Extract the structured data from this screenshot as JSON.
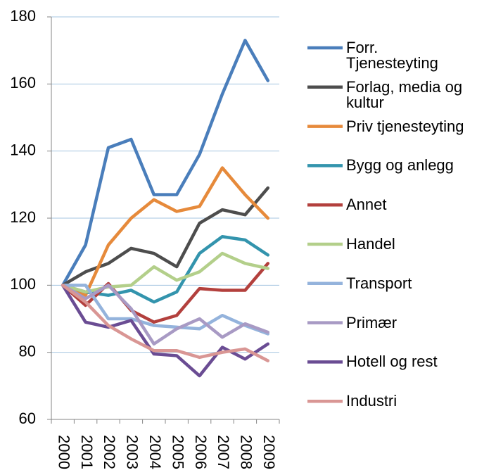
{
  "chart_data": {
    "type": "line",
    "categories": [
      "2000",
      "2001",
      "2002",
      "2003",
      "2004",
      "2005",
      "2006",
      "2007",
      "2008",
      "2009"
    ],
    "ylim": [
      60,
      180
    ],
    "yticks": [
      60,
      80,
      100,
      120,
      140,
      160,
      180
    ],
    "grid": true,
    "legend": "right",
    "series": [
      {
        "name": "Forr. Tjenesteyting",
        "color": "#4a7ebb",
        "values": [
          100,
          112,
          141,
          143.5,
          127,
          127,
          139,
          157,
          173,
          161
        ]
      },
      {
        "name": "Forlag, media og kultur",
        "color": "#4d4d4d",
        "values": [
          100,
          104,
          106.5,
          111,
          109.5,
          105.5,
          118.5,
          122.5,
          121,
          129
        ]
      },
      {
        "name": "Priv tjenesteyting",
        "color": "#e68a3b",
        "values": [
          100,
          97,
          112,
          120,
          125.5,
          122,
          123.5,
          135,
          127,
          120
        ]
      },
      {
        "name": "Bygg og anlegg",
        "color": "#3394ad",
        "values": [
          100,
          98,
          97,
          98.5,
          95,
          98,
          109.5,
          114.5,
          113.5,
          109
        ]
      },
      {
        "name": "Annet",
        "color": "#b3403d",
        "values": [
          100,
          94,
          100.5,
          92.5,
          89,
          91,
          99,
          98.5,
          98.5,
          106.5
        ]
      },
      {
        "name": "Handel",
        "color": "#b3cf8a",
        "values": [
          100,
          98,
          99.5,
          100,
          105.5,
          101.5,
          104,
          109.5,
          106.5,
          105
        ]
      },
      {
        "name": "Transport",
        "color": "#94b3dc",
        "values": [
          100,
          100,
          90,
          90,
          88,
          87.5,
          87,
          91,
          88,
          85.5
        ]
      },
      {
        "name": "Primær",
        "color": "#a89ac4",
        "values": [
          100,
          96,
          100,
          93,
          82.5,
          87,
          90,
          84.5,
          88.5,
          86
        ]
      },
      {
        "name": "Hotell og rest",
        "color": "#6a4c93",
        "values": [
          100,
          89,
          87.5,
          89.5,
          79.5,
          79,
          73,
          81.5,
          78,
          82.5
        ]
      },
      {
        "name": "Industri",
        "color": "#d99694",
        "values": [
          100,
          95,
          88,
          84,
          80.5,
          80.5,
          78.5,
          80,
          81,
          77.5
        ]
      }
    ]
  }
}
